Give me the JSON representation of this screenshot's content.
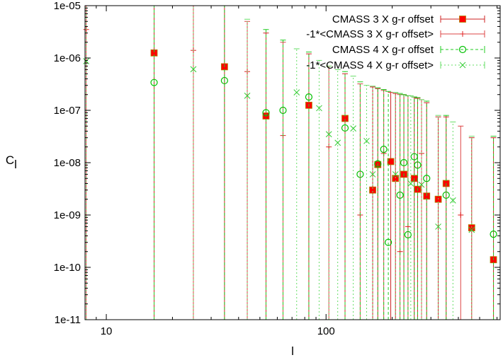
{
  "chart_data": {
    "type": "scatter",
    "title": "",
    "xlabel": "l",
    "ylabel": "C_l",
    "xscale": "log",
    "yscale": "log",
    "xlim": [
      8,
      620
    ],
    "ylim": [
      1e-11,
      1e-05
    ],
    "x_ticks": [
      {
        "value": 10,
        "label": "10"
      },
      {
        "value": 100,
        "label": "100"
      }
    ],
    "y_ticks": [
      {
        "value": 1e-11,
        "label": "1e-11"
      },
      {
        "value": 1e-10,
        "label": "1e-10"
      },
      {
        "value": 1e-09,
        "label": "1e-09"
      },
      {
        "value": 1e-08,
        "label": "1e-08"
      },
      {
        "value": 1e-07,
        "label": "1e-07"
      },
      {
        "value": 1e-06,
        "label": "1e-06"
      },
      {
        "value": 1e-05,
        "label": "1e-05"
      }
    ],
    "legend_position": "top-right",
    "series": [
      {
        "name": "CMASS 3 X g-r offset",
        "marker": "filled-square",
        "color": "#ff0000",
        "points": [
          {
            "x": 16.5,
            "y": 1.25e-06,
            "err_hi": 1e-05
          },
          {
            "x": 34.5,
            "y": 6.8e-07,
            "err_hi": 1e-05
          },
          {
            "x": 53.3,
            "y": 7.8e-08,
            "err_hi": 3e-06
          },
          {
            "x": 83.5,
            "y": 1.25e-07,
            "err_hi": 1.2e-06
          },
          {
            "x": 122,
            "y": 7e-08,
            "err_hi": 5e-07
          },
          {
            "x": 163,
            "y": 3e-09,
            "err_hi": 2.8e-07
          },
          {
            "x": 172,
            "y": 9.2e-09,
            "err_hi": 2.6e-07
          },
          {
            "x": 197,
            "y": 1.05e-08,
            "err_hi": 2.2e-07
          },
          {
            "x": 207,
            "y": 5e-09,
            "err_hi": 2.1e-07
          },
          {
            "x": 226,
            "y": 6e-09,
            "err_hi": 2e-07
          },
          {
            "x": 252,
            "y": 5e-09,
            "err_hi": 1.8e-07
          },
          {
            "x": 261,
            "y": 3.1e-09,
            "err_hi": 1.7e-07
          },
          {
            "x": 287,
            "y": 2.3e-09,
            "err_hi": 1.4e-07
          },
          {
            "x": 324,
            "y": 2e-09,
            "err_hi": 7.5e-08
          },
          {
            "x": 352,
            "y": 4e-09,
            "err_hi": 7.5e-08
          },
          {
            "x": 460,
            "y": 5.7e-10,
            "err_hi": 3e-08
          },
          {
            "x": 578,
            "y": 1.4e-10,
            "err_hi": 3e-08
          }
        ]
      },
      {
        "name": "-1*<CMASS 3 X g-r offset>",
        "marker": "plus",
        "color": "#e02020",
        "points": [
          {
            "x": 8.1,
            "y": 3.5e-06,
            "err_hi": 1e-05
          },
          {
            "x": 24.9,
            "y": 1.4e-06,
            "err_hi": 1e-05
          },
          {
            "x": 43.8,
            "y": 5.5e-07,
            "err_hi": 5e-06
          },
          {
            "x": 63.7,
            "y": 3.3e-08,
            "err_hi": 2e-06
          },
          {
            "x": 103,
            "y": 2e-08,
            "err_hi": 7e-07
          },
          {
            "x": 143,
            "y": 1e-09,
            "err_hi": 3.2e-07
          },
          {
            "x": 183,
            "y": 1.5e-08,
            "err_hi": 2.4e-07
          },
          {
            "x": 217,
            "y": 2e-10,
            "err_hi": 2e-07
          },
          {
            "x": 236,
            "y": 6e-10,
            "err_hi": 1.9e-07
          },
          {
            "x": 272,
            "y": 1.5e-08,
            "err_hi": 1.6e-07
          },
          {
            "x": 410,
            "y": 1e-09,
            "err_hi": 5e-08
          }
        ]
      },
      {
        "name": "CMASS 4 X g-r offset",
        "marker": "open-circle",
        "color": "#00c000",
        "points": [
          {
            "x": 16.5,
            "y": 3.4e-07,
            "err_hi": 1e-05
          },
          {
            "x": 34.5,
            "y": 3.7e-07,
            "err_hi": 1e-05
          },
          {
            "x": 53.3,
            "y": 9e-08,
            "err_hi": 3.5e-06
          },
          {
            "x": 63.7,
            "y": 1e-07,
            "err_hi": 2.2e-06
          },
          {
            "x": 83.5,
            "y": 1.8e-07,
            "err_hi": 1.3e-06
          },
          {
            "x": 122,
            "y": 4.6e-08,
            "err_hi": 5.5e-07
          },
          {
            "x": 143,
            "y": 6e-09,
            "err_hi": 3.5e-07
          },
          {
            "x": 172,
            "y": 9.5e-09,
            "err_hi": 2.7e-07
          },
          {
            "x": 183,
            "y": 1.8e-08,
            "err_hi": 2.5e-07
          },
          {
            "x": 192,
            "y": 3e-10,
            "err_hi": 2.3e-07
          },
          {
            "x": 217,
            "y": 2.4e-09,
            "err_hi": 2.1e-07
          },
          {
            "x": 226,
            "y": 1e-08,
            "err_hi": 2e-07
          },
          {
            "x": 236,
            "y": 4.2e-10,
            "err_hi": 1.9e-07
          },
          {
            "x": 252,
            "y": 1.3e-08,
            "err_hi": 1.8e-07
          },
          {
            "x": 261,
            "y": 9e-09,
            "err_hi": 1.75e-07
          },
          {
            "x": 287,
            "y": 5e-09,
            "err_hi": 1.5e-07
          },
          {
            "x": 352,
            "y": 2.4e-09,
            "err_hi": 8e-08
          },
          {
            "x": 578,
            "y": 4.3e-10,
            "err_hi": 3.2e-08
          }
        ]
      },
      {
        "name": "-1*<CMASS 4 X g-r offset>",
        "marker": "cross",
        "color": "#33cc33",
        "points": [
          {
            "x": 8.1,
            "y": 8.7e-07,
            "err_hi": 1e-05
          },
          {
            "x": 24.9,
            "y": 6.1e-07,
            "err_hi": 1e-05
          },
          {
            "x": 43.8,
            "y": 1.9e-07,
            "err_hi": 5.5e-06
          },
          {
            "x": 73.5,
            "y": 2.2e-07,
            "err_hi": 1.5e-06
          },
          {
            "x": 93,
            "y": 1.1e-07,
            "err_hi": 9e-07
          },
          {
            "x": 103,
            "y": 3.5e-08,
            "err_hi": 7e-07
          },
          {
            "x": 113,
            "y": 2.4e-08,
            "err_hi": 6e-07
          },
          {
            "x": 133,
            "y": 4.5e-08,
            "err_hi": 4.5e-07
          },
          {
            "x": 153,
            "y": 2.6e-08,
            "err_hi": 3e-07
          },
          {
            "x": 163,
            "y": 6e-09,
            "err_hi": 2.9e-07
          },
          {
            "x": 207,
            "y": 6e-09,
            "err_hi": 2.2e-07
          },
          {
            "x": 243,
            "y": 4e-09,
            "err_hi": 1.9e-07
          },
          {
            "x": 272,
            "y": 3.8e-09,
            "err_hi": 1.6e-07
          },
          {
            "x": 324,
            "y": 6e-10,
            "err_hi": 8e-08
          },
          {
            "x": 378,
            "y": 1.9e-09,
            "err_hi": 6e-08
          },
          {
            "x": 460,
            "y": 5.2e-10,
            "err_hi": 3.2e-08
          }
        ]
      }
    ]
  }
}
